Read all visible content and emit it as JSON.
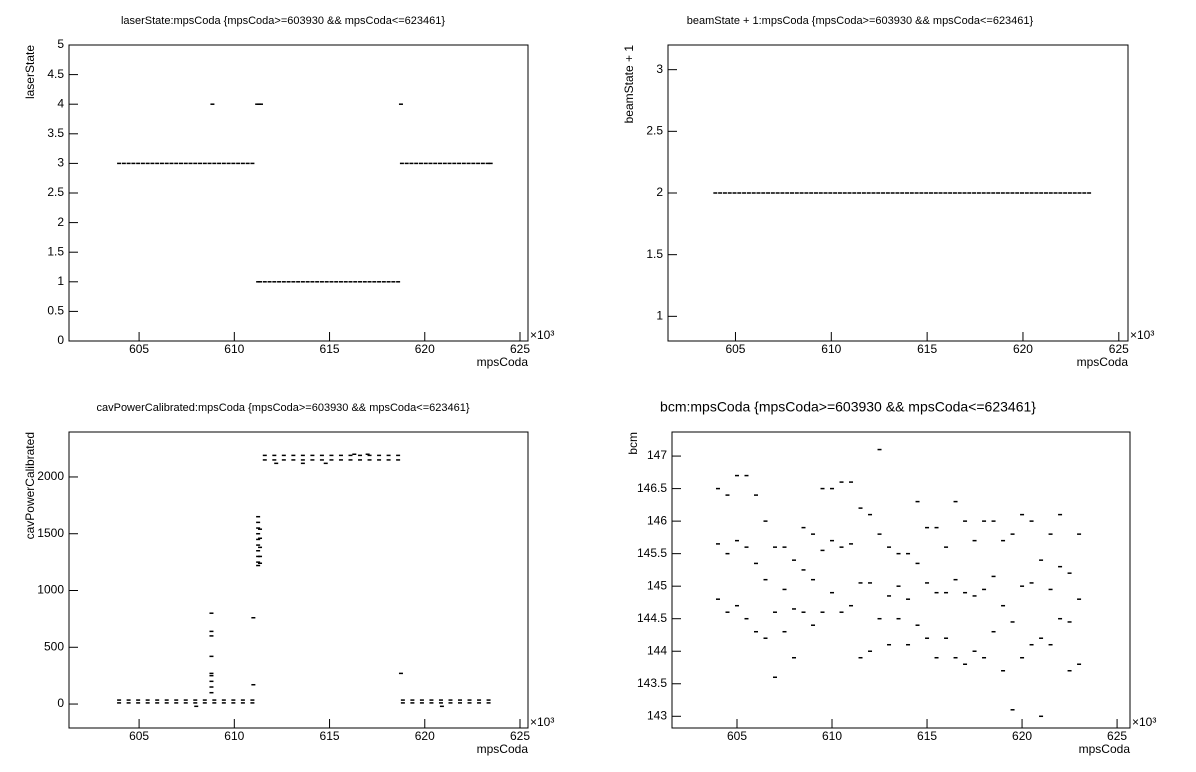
{
  "chart_data": [
    {
      "type": "scatter",
      "title": "laserState:mpsCoda {mpsCoda>=603930 && mpsCoda<=623461}",
      "x_label": "mpsCoda",
      "y_label": "laserState",
      "x_exponent": "×10³",
      "color": "#000000",
      "xlim": [
        601.32,
        625.42
      ],
      "xticks": [
        605,
        610,
        615,
        620,
        625
      ],
      "ylim": [
        0,
        5
      ],
      "yticks": [
        0,
        0.5,
        1,
        1.5,
        2,
        2.5,
        3,
        3.5,
        4,
        4.5,
        5
      ],
      "x": [
        603.95,
        604.2,
        604.45,
        604.7,
        604.95,
        605.2,
        605.45,
        605.7,
        605.95,
        606.2,
        606.45,
        606.7,
        606.95,
        607.2,
        607.45,
        607.7,
        607.95,
        608.2,
        608.45,
        608.7,
        608.95,
        609.2,
        609.45,
        609.7,
        609.95,
        610.2,
        610.45,
        610.7,
        610.95,
        611.6,
        611.85,
        612.1,
        612.35,
        612.6,
        612.85,
        613.1,
        613.35,
        613.6,
        613.85,
        614.1,
        614.35,
        614.6,
        614.85,
        615.1,
        615.35,
        615.6,
        615.85,
        616.1,
        616.35,
        616.6,
        616.85,
        617.1,
        617.35,
        617.6,
        617.85,
        618.1,
        618.35,
        618.6,
        618.8,
        619.05,
        619.3,
        619.55,
        619.8,
        620.05,
        620.3,
        620.55,
        620.8,
        621.05,
        621.3,
        621.55,
        621.8,
        622.05,
        622.3,
        622.55,
        622.8,
        623.05,
        623.3,
        623.46,
        608.85,
        611.2,
        611.3,
        611.4,
        618.75,
        611.25,
        611.35
      ],
      "values": [
        3,
        3,
        3,
        3,
        3,
        3,
        3,
        3,
        3,
        3,
        3,
        3,
        3,
        3,
        3,
        3,
        3,
        3,
        3,
        3,
        3,
        3,
        3,
        3,
        3,
        3,
        3,
        3,
        3,
        1,
        1,
        1,
        1,
        1,
        1,
        1,
        1,
        1,
        1,
        1,
        1,
        1,
        1,
        1,
        1,
        1,
        1,
        1,
        1,
        1,
        1,
        1,
        1,
        1,
        1,
        1,
        1,
        1,
        3,
        3,
        3,
        3,
        3,
        3,
        3,
        3,
        3,
        3,
        3,
        3,
        3,
        3,
        3,
        3,
        3,
        3,
        3,
        3,
        4,
        4,
        4,
        4,
        4,
        1,
        1
      ]
    },
    {
      "type": "scatter",
      "title": "beamState + 1:mpsCoda {mpsCoda>=603930 && mpsCoda<=623461}",
      "x_label": "mpsCoda",
      "y_label": "beamState + 1",
      "x_exponent": "×10³",
      "color": "#000000",
      "xlim": [
        601.48,
        625.48
      ],
      "xticks": [
        605,
        610,
        615,
        620,
        625
      ],
      "ylim": [
        0.8,
        3.2
      ],
      "yticks": [
        1,
        1.5,
        2,
        2.5,
        3
      ],
      "x": [
        603.95,
        604.2,
        604.45,
        604.7,
        604.95,
        605.2,
        605.45,
        605.7,
        605.95,
        606.2,
        606.45,
        606.7,
        606.95,
        607.2,
        607.45,
        607.7,
        607.95,
        608.2,
        608.45,
        608.7,
        608.95,
        609.2,
        609.45,
        609.7,
        609.95,
        610.2,
        610.45,
        610.7,
        610.95,
        611.2,
        611.45,
        611.7,
        611.95,
        612.2,
        612.45,
        612.7,
        612.95,
        613.2,
        613.45,
        613.7,
        613.95,
        614.2,
        614.45,
        614.7,
        614.95,
        615.2,
        615.45,
        615.7,
        615.95,
        616.2,
        616.45,
        616.7,
        616.95,
        617.2,
        617.45,
        617.7,
        617.95,
        618.2,
        618.45,
        618.7,
        618.95,
        619.2,
        619.45,
        619.7,
        619.95,
        620.2,
        620.45,
        620.7,
        620.95,
        621.2,
        621.45,
        621.7,
        621.95,
        622.2,
        622.45,
        622.7,
        622.95,
        623.2,
        623.45
      ],
      "values": [
        2,
        2,
        2,
        2,
        2,
        2,
        2,
        2,
        2,
        2,
        2,
        2,
        2,
        2,
        2,
        2,
        2,
        2,
        2,
        2,
        2,
        2,
        2,
        2,
        2,
        2,
        2,
        2,
        2,
        2,
        2,
        2,
        2,
        2,
        2,
        2,
        2,
        2,
        2,
        2,
        2,
        2,
        2,
        2,
        2,
        2,
        2,
        2,
        2,
        2,
        2,
        2,
        2,
        2,
        2,
        2,
        2,
        2,
        2,
        2,
        2,
        2,
        2,
        2,
        2,
        2,
        2,
        2,
        2,
        2,
        2,
        2,
        2,
        2,
        2,
        2,
        2,
        2,
        2
      ]
    },
    {
      "type": "scatter",
      "title": "cavPowerCalibrated:mpsCoda {mpsCoda>=603930 && mpsCoda<=623461}",
      "x_label": "mpsCoda",
      "y_label": "cavPowerCalibrated",
      "x_exponent": "×10³",
      "color": "#000000",
      "xlim": [
        601.32,
        625.42
      ],
      "xticks": [
        605,
        610,
        615,
        620,
        625
      ],
      "ylim": [
        -211,
        2396
      ],
      "yticks": [
        0,
        500,
        1000,
        1500,
        2000
      ],
      "x": [
        603.95,
        604.45,
        604.95,
        605.45,
        605.95,
        606.45,
        606.95,
        607.45,
        607.95,
        608.45,
        608.95,
        609.45,
        609.95,
        610.45,
        610.95,
        603.95,
        604.45,
        604.95,
        605.45,
        605.95,
        606.45,
        606.95,
        607.45,
        607.95,
        608.45,
        608.95,
        609.45,
        609.95,
        610.45,
        610.95,
        611.6,
        612.1,
        612.6,
        613.1,
        613.6,
        614.1,
        614.6,
        615.1,
        615.6,
        616.1,
        616.6,
        617.1,
        617.6,
        618.1,
        618.6,
        611.6,
        612.1,
        612.6,
        613.1,
        613.6,
        614.1,
        614.6,
        615.1,
        615.6,
        616.1,
        616.6,
        617.1,
        617.6,
        618.1,
        618.6,
        618.85,
        619.35,
        619.85,
        620.35,
        620.85,
        621.35,
        621.85,
        622.35,
        622.85,
        623.35,
        618.85,
        619.35,
        619.85,
        620.35,
        620.85,
        621.35,
        621.85,
        622.35,
        622.85,
        623.35,
        608.8,
        608.8,
        608.8,
        608.8,
        608.8,
        608.8,
        608.8,
        608.8,
        608.8,
        611.25,
        611.25,
        611.25,
        611.25,
        611.25,
        611.25,
        611.25,
        611.25,
        611.25,
        611.25,
        611.35,
        611.35,
        611.35,
        611.35,
        611.35,
        611.0,
        611.0,
        618.75,
        613.6,
        614.8,
        612.2,
        616.3,
        617.0,
        608.0,
        620.9
      ],
      "values": [
        10,
        10,
        10,
        10,
        10,
        10,
        10,
        10,
        10,
        10,
        10,
        10,
        10,
        10,
        10,
        35,
        35,
        35,
        35,
        35,
        35,
        35,
        35,
        35,
        35,
        35,
        35,
        35,
        35,
        35,
        2150,
        2150,
        2150,
        2150,
        2150,
        2150,
        2150,
        2150,
        2150,
        2150,
        2150,
        2150,
        2150,
        2150,
        2150,
        2190,
        2190,
        2190,
        2190,
        2190,
        2190,
        2190,
        2190,
        2190,
        2190,
        2190,
        2190,
        2190,
        2190,
        2190,
        10,
        10,
        10,
        10,
        10,
        10,
        10,
        10,
        10,
        10,
        35,
        35,
        35,
        35,
        35,
        35,
        35,
        35,
        35,
        35,
        100,
        150,
        200,
        250,
        270,
        420,
        600,
        640,
        800,
        1220,
        1250,
        1300,
        1350,
        1400,
        1450,
        1500,
        1550,
        1600,
        1650,
        1240,
        1300,
        1380,
        1460,
        1540,
        760,
        170,
        270,
        2120,
        2120,
        2120,
        2200,
        2200,
        -20,
        -20
      ]
    },
    {
      "type": "scatter",
      "title": "bcm:mpsCoda {mpsCoda>=603930 && mpsCoda<=623461}",
      "x_label": "mpsCoda",
      "y_label": "bcm",
      "x_exponent": "×10³",
      "color": "#000000",
      "xlim": [
        601.58,
        625.68
      ],
      "xticks": [
        605,
        610,
        615,
        620,
        625
      ],
      "ylim": [
        142.82,
        147.37
      ],
      "yticks": [
        143,
        143.5,
        144,
        144.5,
        145,
        145.5,
        146,
        146.5,
        147
      ],
      "x": [
        604,
        604,
        604,
        604.5,
        604.5,
        604.5,
        605,
        605,
        605,
        605.5,
        605.5,
        605.5,
        606,
        606,
        606,
        606.5,
        606.5,
        606.5,
        607,
        607,
        607,
        607.5,
        607.5,
        607.5,
        608,
        608,
        608,
        608.5,
        608.5,
        608.5,
        609,
        609,
        609,
        609.5,
        609.5,
        609.5,
        610,
        610,
        610,
        610.5,
        610.5,
        610.5,
        611,
        611,
        611,
        611.5,
        611.5,
        611.5,
        612,
        612,
        612,
        612.5,
        612.5,
        612.5,
        613,
        613,
        613,
        613.5,
        613.5,
        613.5,
        614,
        614,
        614,
        614.5,
        614.5,
        614.5,
        615,
        615,
        615,
        615.5,
        615.5,
        615.5,
        616,
        616,
        616,
        616.5,
        616.5,
        616.5,
        617,
        617,
        617,
        617.5,
        617.5,
        617.5,
        618,
        618,
        618,
        618.5,
        618.5,
        618.5,
        619,
        619,
        619,
        619.5,
        619.5,
        619.5,
        620,
        620,
        620,
        620.5,
        620.5,
        620.5,
        621,
        621,
        621,
        621.5,
        621.5,
        621.5,
        622,
        622,
        622,
        622.5,
        622.5,
        622.5,
        623,
        623,
        623
      ],
      "values": [
        144.8,
        145.65,
        146.5,
        144.6,
        145.5,
        146.4,
        144.7,
        145.7,
        146.7,
        144.5,
        145.6,
        146.7,
        144.3,
        145.35,
        146.4,
        144.2,
        145.1,
        146.0,
        143.6,
        144.6,
        145.6,
        144.3,
        144.95,
        145.6,
        143.9,
        144.65,
        145.4,
        144.6,
        145.25,
        145.9,
        144.4,
        145.1,
        145.8,
        144.6,
        145.55,
        146.5,
        144.9,
        145.7,
        146.5,
        144.6,
        145.6,
        146.6,
        144.7,
        145.65,
        146.6,
        143.9,
        145.05,
        146.2,
        144.0,
        145.05,
        146.1,
        144.5,
        145.8,
        147.1,
        144.1,
        144.85,
        145.6,
        144.5,
        145.0,
        145.5,
        144.1,
        144.8,
        145.5,
        144.4,
        145.35,
        146.3,
        144.2,
        145.05,
        145.9,
        143.9,
        144.9,
        145.9,
        144.2,
        144.9,
        145.6,
        143.9,
        145.1,
        146.3,
        143.8,
        144.9,
        146.0,
        144.0,
        144.85,
        145.7,
        143.9,
        144.95,
        146.0,
        144.3,
        145.15,
        146.0,
        143.7,
        144.7,
        145.7,
        143.1,
        144.45,
        145.8,
        143.9,
        145.0,
        146.1,
        144.1,
        145.05,
        146.0,
        143.0,
        144.2,
        145.4,
        144.1,
        144.95,
        145.8,
        144.5,
        145.3,
        146.1,
        143.7,
        144.45,
        145.2,
        143.8,
        144.8,
        145.8
      ]
    }
  ]
}
